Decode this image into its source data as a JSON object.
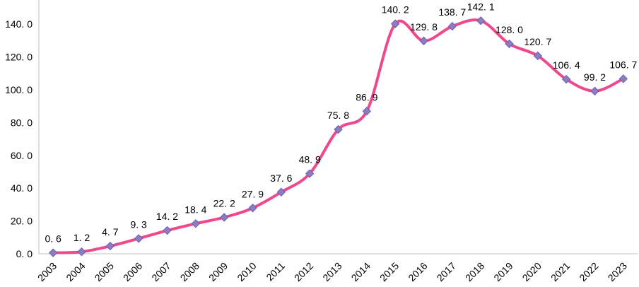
{
  "chart_data": {
    "type": "line",
    "title": "",
    "xlabel": "",
    "ylabel": "",
    "ylim": [
      0,
      150
    ],
    "y_ticks": [
      "0. 0",
      "20. 0",
      "40. 0",
      "60. 0",
      "80. 0",
      "100. 0",
      "120. 0",
      "140. 0"
    ],
    "grid": false,
    "legend": "none",
    "smooth": true,
    "categories": [
      "2003",
      "2004",
      "2005",
      "2006",
      "2007",
      "2008",
      "2009",
      "2010",
      "2011",
      "2012",
      "2013",
      "2014",
      "2015",
      "2016",
      "2017",
      "2018",
      "2019",
      "2020",
      "2021",
      "2022",
      "2023"
    ],
    "series": [
      {
        "values": [
          0.6,
          1.2,
          4.7,
          9.3,
          14.2,
          18.4,
          22.2,
          27.9,
          37.6,
          48.9,
          75.8,
          86.9,
          140.2,
          129.8,
          138.7,
          142.1,
          128.0,
          120.7,
          106.4,
          99.2,
          106.7
        ],
        "labels": [
          "0. 6",
          "1. 2",
          "4. 7",
          "9. 3",
          "14. 2",
          "18. 4",
          "22. 2",
          "27. 9",
          "37. 6",
          "48. 9",
          "75. 8",
          "86. 9",
          "140. 2",
          "129. 8",
          "138. 7",
          "142. 1",
          "128. 0",
          "120. 7",
          "106. 4",
          "99. 2",
          "106. 7"
        ],
        "line_color": "#f0488c",
        "marker_fill": "#8e7cc3",
        "marker_stroke": "#6f5fb0"
      }
    ],
    "axis_color": "#bfbfbf"
  }
}
